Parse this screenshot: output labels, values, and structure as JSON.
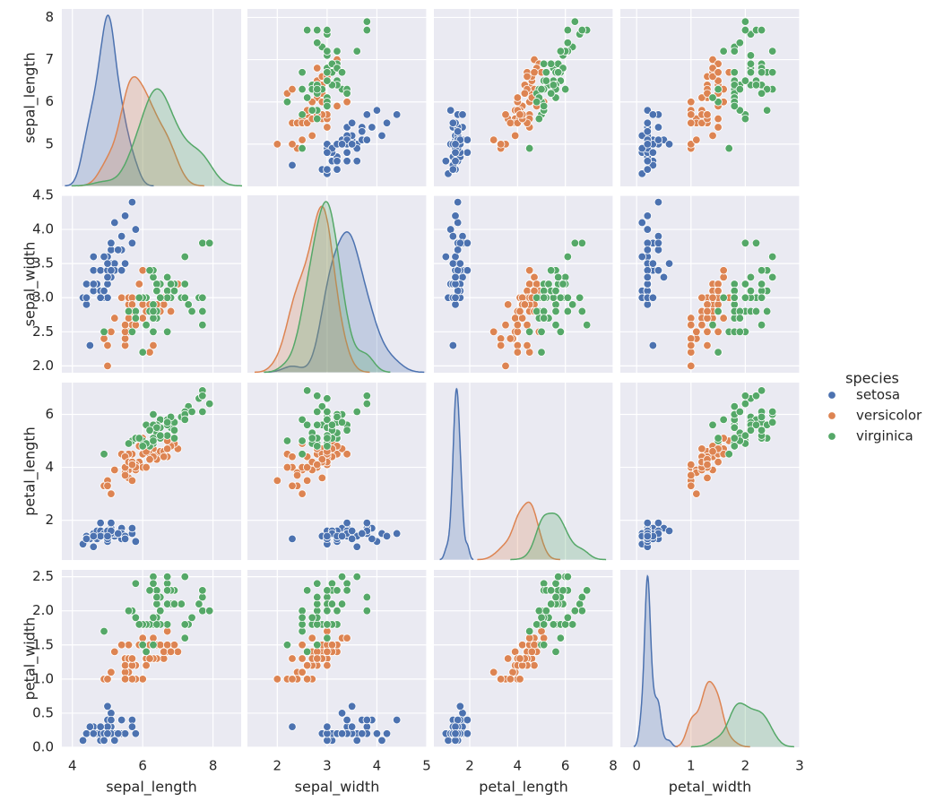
{
  "chart_data": {
    "type": "scatter",
    "variables": [
      "sepal_length",
      "sepal_width",
      "petal_length",
      "petal_width"
    ],
    "axes": {
      "sepal_length": {
        "lim": [
          3.7,
          8.8
        ],
        "ticks": [
          4,
          6,
          8
        ],
        "ytick_lim": [
          4.0,
          8.2
        ],
        "yticks": [
          5,
          6,
          7,
          8
        ]
      },
      "sepal_width": {
        "lim": [
          1.4,
          5.0
        ],
        "ticks": [
          2,
          3,
          4,
          5
        ],
        "ytick_lim": [
          1.9,
          4.5
        ],
        "yticks": [
          2.0,
          2.5,
          3.0,
          3.5,
          4.0,
          4.5
        ]
      },
      "petal_length": {
        "lim": [
          0.5,
          8.0
        ],
        "ticks": [
          2,
          4,
          6,
          8
        ],
        "ytick_lim": [
          0.5,
          7.2
        ],
        "yticks": [
          2,
          4,
          6
        ]
      },
      "petal_width": {
        "lim": [
          -0.3,
          3.0
        ],
        "ticks": [
          0,
          1,
          2,
          3
        ],
        "ytick_lim": [
          0.0,
          2.6
        ],
        "yticks": [
          0.0,
          0.5,
          1.0,
          1.5,
          2.0,
          2.5
        ]
      }
    },
    "legend": {
      "title": "species",
      "position": "right"
    },
    "grid": true,
    "series": [
      {
        "name": "setosa",
        "color": "#4c72b0",
        "values": [
          [
            5.1,
            3.5,
            1.4,
            0.2
          ],
          [
            4.9,
            3.0,
            1.4,
            0.2
          ],
          [
            4.7,
            3.2,
            1.3,
            0.2
          ],
          [
            4.6,
            3.1,
            1.5,
            0.2
          ],
          [
            5.0,
            3.6,
            1.4,
            0.2
          ],
          [
            5.4,
            3.9,
            1.7,
            0.4
          ],
          [
            4.6,
            3.4,
            1.4,
            0.3
          ],
          [
            5.0,
            3.4,
            1.5,
            0.2
          ],
          [
            4.4,
            2.9,
            1.4,
            0.2
          ],
          [
            4.9,
            3.1,
            1.5,
            0.1
          ],
          [
            5.4,
            3.7,
            1.5,
            0.2
          ],
          [
            4.8,
            3.4,
            1.6,
            0.2
          ],
          [
            4.8,
            3.0,
            1.4,
            0.1
          ],
          [
            4.3,
            3.0,
            1.1,
            0.1
          ],
          [
            5.8,
            4.0,
            1.2,
            0.2
          ],
          [
            5.7,
            4.4,
            1.5,
            0.4
          ],
          [
            5.4,
            3.9,
            1.3,
            0.4
          ],
          [
            5.1,
            3.5,
            1.4,
            0.3
          ],
          [
            5.7,
            3.8,
            1.7,
            0.3
          ],
          [
            5.1,
            3.8,
            1.5,
            0.3
          ],
          [
            5.4,
            3.4,
            1.7,
            0.2
          ],
          [
            5.1,
            3.7,
            1.5,
            0.4
          ],
          [
            4.6,
            3.6,
            1.0,
            0.2
          ],
          [
            5.1,
            3.3,
            1.7,
            0.5
          ],
          [
            4.8,
            3.4,
            1.9,
            0.2
          ],
          [
            5.0,
            3.0,
            1.6,
            0.2
          ],
          [
            5.0,
            3.4,
            1.6,
            0.4
          ],
          [
            5.2,
            3.5,
            1.5,
            0.2
          ],
          [
            5.2,
            3.4,
            1.4,
            0.2
          ],
          [
            4.7,
            3.2,
            1.6,
            0.2
          ],
          [
            4.8,
            3.1,
            1.6,
            0.2
          ],
          [
            5.4,
            3.4,
            1.5,
            0.4
          ],
          [
            5.2,
            4.1,
            1.5,
            0.1
          ],
          [
            5.5,
            4.2,
            1.4,
            0.2
          ],
          [
            4.9,
            3.1,
            1.5,
            0.2
          ],
          [
            5.0,
            3.2,
            1.2,
            0.2
          ],
          [
            5.5,
            3.5,
            1.3,
            0.2
          ],
          [
            4.9,
            3.6,
            1.4,
            0.1
          ],
          [
            4.4,
            3.0,
            1.3,
            0.2
          ],
          [
            5.1,
            3.4,
            1.5,
            0.2
          ],
          [
            5.0,
            3.5,
            1.3,
            0.3
          ],
          [
            4.5,
            2.3,
            1.3,
            0.3
          ],
          [
            4.4,
            3.2,
            1.3,
            0.2
          ],
          [
            5.0,
            3.5,
            1.6,
            0.6
          ],
          [
            5.1,
            3.8,
            1.9,
            0.4
          ],
          [
            4.8,
            3.0,
            1.4,
            0.3
          ],
          [
            5.1,
            3.8,
            1.6,
            0.2
          ],
          [
            4.6,
            3.2,
            1.4,
            0.2
          ],
          [
            5.3,
            3.7,
            1.5,
            0.2
          ],
          [
            5.0,
            3.3,
            1.4,
            0.2
          ]
        ]
      },
      {
        "name": "versicolor",
        "color": "#dd8452",
        "values": [
          [
            7.0,
            3.2,
            4.7,
            1.4
          ],
          [
            6.4,
            3.2,
            4.5,
            1.5
          ],
          [
            6.9,
            3.1,
            4.9,
            1.5
          ],
          [
            5.5,
            2.3,
            4.0,
            1.3
          ],
          [
            6.5,
            2.8,
            4.6,
            1.5
          ],
          [
            5.7,
            2.8,
            4.5,
            1.3
          ],
          [
            6.3,
            3.3,
            4.7,
            1.6
          ],
          [
            4.9,
            2.4,
            3.3,
            1.0
          ],
          [
            6.6,
            2.9,
            4.6,
            1.3
          ],
          [
            5.2,
            2.7,
            3.9,
            1.4
          ],
          [
            5.0,
            2.0,
            3.5,
            1.0
          ],
          [
            5.9,
            3.0,
            4.2,
            1.5
          ],
          [
            6.0,
            2.2,
            4.0,
            1.0
          ],
          [
            6.1,
            2.9,
            4.7,
            1.4
          ],
          [
            5.6,
            2.9,
            3.6,
            1.3
          ],
          [
            6.7,
            3.1,
            4.4,
            1.4
          ],
          [
            5.6,
            3.0,
            4.5,
            1.5
          ],
          [
            5.8,
            2.7,
            4.1,
            1.0
          ],
          [
            6.2,
            2.2,
            4.5,
            1.5
          ],
          [
            5.6,
            2.5,
            3.9,
            1.1
          ],
          [
            5.9,
            3.2,
            4.8,
            1.8
          ],
          [
            6.1,
            2.8,
            4.0,
            1.3
          ],
          [
            6.3,
            2.5,
            4.9,
            1.5
          ],
          [
            6.1,
            2.8,
            4.7,
            1.2
          ],
          [
            6.4,
            2.9,
            4.3,
            1.3
          ],
          [
            6.6,
            3.0,
            4.4,
            1.4
          ],
          [
            6.8,
            2.8,
            4.8,
            1.4
          ],
          [
            6.7,
            3.0,
            5.0,
            1.7
          ],
          [
            6.0,
            2.9,
            4.5,
            1.5
          ],
          [
            5.7,
            2.6,
            3.5,
            1.0
          ],
          [
            5.5,
            2.4,
            3.8,
            1.1
          ],
          [
            5.5,
            2.4,
            3.7,
            1.0
          ],
          [
            5.8,
            2.7,
            3.9,
            1.2
          ],
          [
            6.0,
            2.7,
            5.1,
            1.6
          ],
          [
            5.4,
            3.0,
            4.5,
            1.5
          ],
          [
            6.0,
            3.4,
            4.5,
            1.6
          ],
          [
            6.7,
            3.1,
            4.7,
            1.5
          ],
          [
            6.3,
            2.3,
            4.4,
            1.3
          ],
          [
            5.6,
            3.0,
            4.1,
            1.3
          ],
          [
            5.5,
            2.5,
            4.0,
            1.3
          ],
          [
            5.5,
            2.6,
            4.4,
            1.2
          ],
          [
            6.1,
            3.0,
            4.6,
            1.4
          ],
          [
            5.8,
            2.6,
            4.0,
            1.2
          ],
          [
            5.0,
            2.3,
            3.3,
            1.0
          ],
          [
            5.6,
            2.7,
            4.2,
            1.3
          ],
          [
            5.7,
            3.0,
            4.2,
            1.2
          ],
          [
            5.7,
            2.9,
            4.2,
            1.3
          ],
          [
            6.2,
            2.9,
            4.3,
            1.3
          ],
          [
            5.1,
            2.5,
            3.0,
            1.1
          ],
          [
            5.7,
            2.8,
            4.1,
            1.3
          ]
        ]
      },
      {
        "name": "virginica",
        "color": "#55a868",
        "values": [
          [
            6.3,
            3.3,
            6.0,
            2.5
          ],
          [
            5.8,
            2.7,
            5.1,
            1.9
          ],
          [
            7.1,
            3.0,
            5.9,
            2.1
          ],
          [
            6.3,
            2.9,
            5.6,
            1.8
          ],
          [
            6.5,
            3.0,
            5.8,
            2.2
          ],
          [
            7.6,
            3.0,
            6.6,
            2.1
          ],
          [
            4.9,
            2.5,
            4.5,
            1.7
          ],
          [
            7.3,
            2.9,
            6.3,
            1.8
          ],
          [
            6.7,
            2.5,
            5.8,
            1.8
          ],
          [
            7.2,
            3.6,
            6.1,
            2.5
          ],
          [
            6.5,
            3.2,
            5.1,
            2.0
          ],
          [
            6.4,
            2.7,
            5.3,
            1.9
          ],
          [
            6.8,
            3.0,
            5.5,
            2.1
          ],
          [
            5.7,
            2.5,
            5.0,
            2.0
          ],
          [
            5.8,
            2.8,
            5.1,
            2.4
          ],
          [
            6.4,
            3.2,
            5.3,
            2.3
          ],
          [
            6.5,
            3.0,
            5.5,
            1.8
          ],
          [
            7.7,
            3.8,
            6.7,
            2.2
          ],
          [
            7.7,
            2.6,
            6.9,
            2.3
          ],
          [
            6.0,
            2.2,
            5.0,
            1.5
          ],
          [
            6.9,
            3.2,
            5.7,
            2.3
          ],
          [
            5.6,
            2.8,
            4.9,
            2.0
          ],
          [
            7.7,
            2.8,
            6.7,
            2.0
          ],
          [
            6.3,
            2.7,
            4.9,
            1.8
          ],
          [
            6.7,
            3.3,
            5.7,
            2.1
          ],
          [
            7.2,
            3.2,
            6.0,
            1.8
          ],
          [
            6.2,
            2.8,
            4.8,
            1.8
          ],
          [
            6.1,
            3.0,
            4.9,
            1.8
          ],
          [
            6.4,
            2.8,
            5.6,
            2.1
          ],
          [
            7.2,
            3.0,
            5.8,
            1.6
          ],
          [
            7.4,
            2.8,
            6.1,
            1.9
          ],
          [
            7.9,
            3.8,
            6.4,
            2.0
          ],
          [
            6.4,
            2.8,
            5.6,
            2.2
          ],
          [
            6.3,
            2.8,
            5.1,
            1.5
          ],
          [
            6.1,
            2.6,
            5.6,
            1.4
          ],
          [
            7.7,
            3.0,
            6.1,
            2.3
          ],
          [
            6.3,
            3.4,
            5.6,
            2.4
          ],
          [
            6.4,
            3.1,
            5.5,
            1.8
          ],
          [
            6.0,
            3.0,
            4.8,
            1.8
          ],
          [
            6.9,
            3.1,
            5.4,
            2.1
          ],
          [
            6.7,
            3.1,
            5.6,
            2.4
          ],
          [
            6.9,
            3.1,
            5.1,
            2.3
          ],
          [
            5.8,
            2.7,
            5.1,
            1.9
          ],
          [
            6.8,
            3.2,
            5.9,
            2.3
          ],
          [
            6.7,
            3.3,
            5.7,
            2.5
          ],
          [
            6.7,
            3.0,
            5.2,
            2.3
          ],
          [
            6.3,
            2.5,
            5.0,
            1.9
          ],
          [
            6.5,
            3.0,
            5.2,
            2.0
          ],
          [
            6.2,
            3.4,
            5.4,
            2.3
          ],
          [
            5.9,
            3.0,
            5.1,
            1.8
          ]
        ]
      }
    ]
  }
}
